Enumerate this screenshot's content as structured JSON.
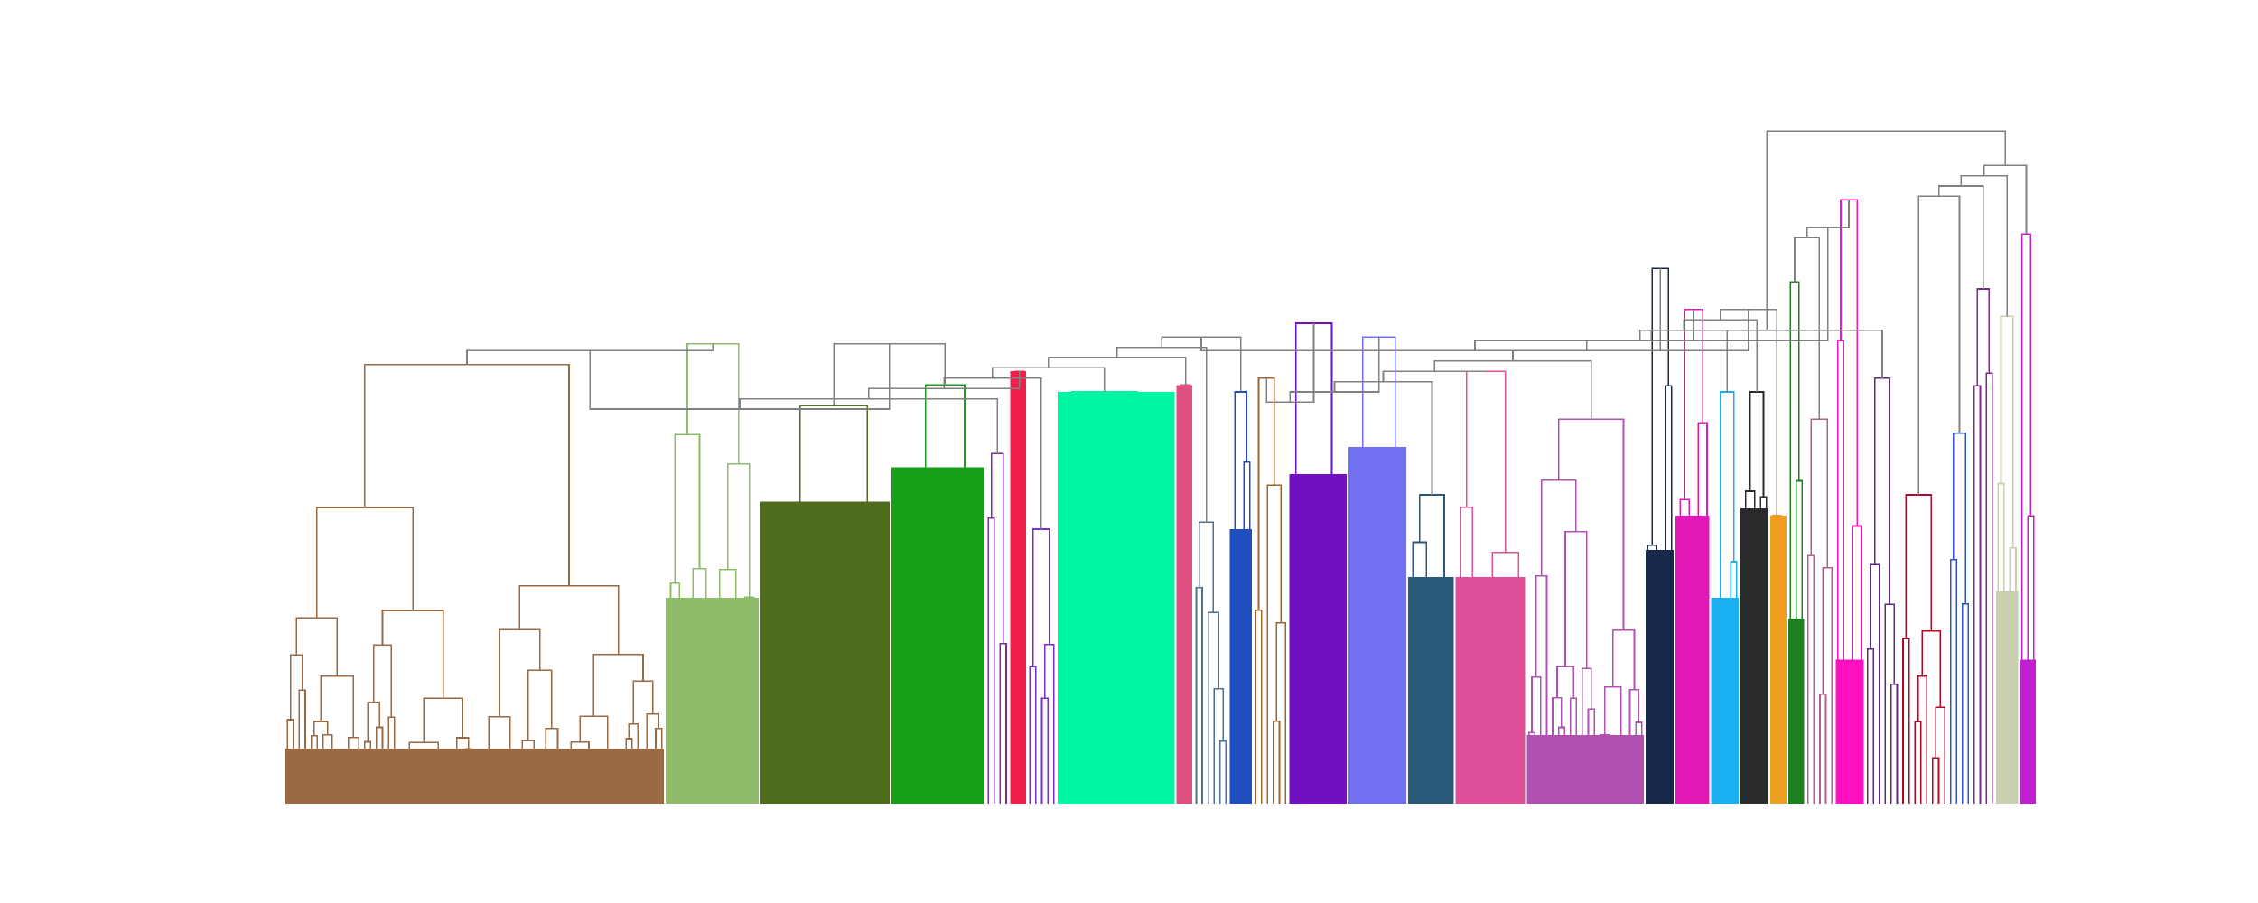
{
  "chart_data": {
    "type": "dendrogram",
    "title": "",
    "xlabel": "",
    "ylabel": "",
    "axes_visible": false,
    "grid": false,
    "legend": "none",
    "height_range": [
      0,
      1
    ],
    "link_color_above_threshold": "#808080",
    "root": {
      "height": 0.98,
      "branches": [
        {
          "height": 0.69,
          "branches": [
            {
              "height": 0.68,
              "branches": [
                {
                  "height": 0.66,
                  "branches": [
                    {
                      "cluster": 1,
                      "color": "#9a6a45",
                      "leaves": 64,
                      "height": 0.64,
                      "dense_height": 0.08
                    },
                    {
                      "cluster": 2,
                      "color": "#8fbc6a",
                      "leaves": 16,
                      "height": 0.67,
                      "dense_height": 0.3
                    }
                  ]
                },
                {
                  "height": 0.67,
                  "branches": [
                    {
                      "cluster": 3,
                      "color": "#4f6b1d",
                      "leaves": 22,
                      "height": 0.58,
                      "dense_height": 0.44
                    },
                    {
                      "cluster": 4,
                      "color": "#16a016",
                      "leaves": 16,
                      "height": 0.61,
                      "dense_height": 0.49
                    }
                  ]
                },
                {
                  "cluster": 5,
                  "color": "#7030a0",
                  "leaves": 4,
                  "height": 0.51,
                  "dense_height": 0.0
                },
                {
                  "cluster": 6,
                  "color": "#f01f4a",
                  "leaves": 3,
                  "height": 0.63,
                  "dense_height": 0.63
                },
                {
                  "cluster": 7,
                  "color": "#7a2ccc",
                  "leaves": 5,
                  "height": 0.4,
                  "dense_height": 0.0
                },
                {
                  "cluster": 8,
                  "color": "#00f5a0",
                  "leaves": 20,
                  "height": 0.6,
                  "dense_height": 0.6
                },
                {
                  "cluster": 9,
                  "color": "#e05080",
                  "leaves": 3,
                  "height": 0.61,
                  "dense_height": 0.61
                },
                {
                  "cluster": 10,
                  "color": "#4f6f8f",
                  "leaves": 6,
                  "height": 0.41,
                  "dense_height": 0.0
                },
                {
                  "cluster": 11,
                  "color": "#1f4fbf",
                  "leaves": 4,
                  "height": 0.6,
                  "dense_height": 0.4
                }
              ]
            },
            {
              "height": 0.72,
              "branches": [
                {
                  "cluster": 12,
                  "color": "#a0652a",
                  "leaves": 6,
                  "height": 0.62,
                  "dense_height": 0.0
                },
                {
                  "cluster": 13,
                  "color": "#7010c0",
                  "leaves": 10,
                  "height": 0.7,
                  "dense_height": 0.48
                },
                {
                  "cluster": 14,
                  "color": "#7070f0",
                  "leaves": 10,
                  "height": 0.68,
                  "dense_height": 0.52
                },
                {
                  "cluster": 15,
                  "color": "#2a5a7a",
                  "leaves": 8,
                  "height": 0.45,
                  "dense_height": 0.33
                },
                {
                  "cluster": 16,
                  "color": "#e0509a",
                  "leaves": 12,
                  "height": 0.63,
                  "dense_height": 0.33
                },
                {
                  "cluster": 17,
                  "color": "#b050b0",
                  "leaves": 20,
                  "height": 0.56,
                  "dense_height": 0.1
                },
                {
                  "cluster": 18,
                  "color": "#18284a",
                  "leaves": 5,
                  "height": 0.78,
                  "dense_height": 0.37
                },
                {
                  "cluster": 19,
                  "color": "#e018b8",
                  "leaves": 6,
                  "height": 0.72,
                  "dense_height": 0.42
                },
                {
                  "cluster": 20,
                  "color": "#18b0f0",
                  "leaves": 5,
                  "height": 0.6,
                  "dense_height": 0.3
                },
                {
                  "cluster": 21,
                  "color": "#2a2a2a",
                  "leaves": 5,
                  "height": 0.6,
                  "dense_height": 0.43
                },
                {
                  "cluster": 22,
                  "color": "#f0a020",
                  "leaves": 3,
                  "height": 0.42,
                  "dense_height": 0.42
                }
              ]
            },
            {
              "height": 0.84,
              "branches": [
                {
                  "cluster": 23,
                  "color": "#208020",
                  "leaves": 3,
                  "height": 0.76,
                  "dense_height": 0.27
                },
                {
                  "cluster": 24,
                  "color": "#b06090",
                  "leaves": 5,
                  "height": 0.56,
                  "dense_height": 0.0
                },
                {
                  "cluster": 25,
                  "color": "#ff10c0",
                  "leaves": 5,
                  "height": 0.88,
                  "dense_height": 0.21
                }
              ]
            },
            {
              "cluster": 26,
              "color": "#602880",
              "leaves": 6,
              "height": 0.62,
              "dense_height": 0.0
            }
          ]
        },
        {
          "height": 0.93,
          "branches": [
            {
              "cluster": 27,
              "color": "#b00828",
              "leaves": 8,
              "height": 0.45,
              "dense_height": 0.0
            },
            {
              "cluster": 28,
              "color": "#3050d0",
              "leaves": 4,
              "height": 0.54,
              "dense_height": 0.0
            },
            {
              "cluster": 29,
              "color": "#7b2a8a",
              "leaves": 4,
              "height": 0.75,
              "dense_height": 0.0
            },
            {
              "cluster": 30,
              "color": "#c8d0b0",
              "leaves": 4,
              "height": 0.71,
              "dense_height": 0.31
            },
            {
              "cluster": 31,
              "color": "#c020d0",
              "leaves": 3,
              "height": 0.83,
              "dense_height": 0.21
            }
          ]
        }
      ]
    }
  }
}
